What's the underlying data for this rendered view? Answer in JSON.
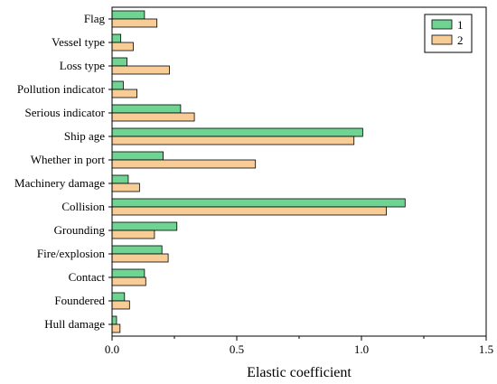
{
  "chart_data": {
    "type": "bar",
    "orientation": "horizontal",
    "categories": [
      "Flag",
      "Vessel type",
      "Loss type",
      "Pollution indicator",
      "Serious indicator",
      "Ship age",
      "Whether in port",
      "Machinery damage",
      "Collision",
      "Grounding",
      "Fire/explosion",
      "Contact",
      "Foundered",
      "Hull damage"
    ],
    "series": [
      {
        "name": "1",
        "color": "#6fd391",
        "values": [
          0.13,
          0.035,
          0.06,
          0.045,
          0.275,
          1.005,
          0.205,
          0.065,
          1.175,
          0.26,
          0.2,
          0.13,
          0.05,
          0.018
        ]
      },
      {
        "name": "2",
        "color": "#f8cc96",
        "values": [
          0.18,
          0.085,
          0.23,
          0.1,
          0.33,
          0.97,
          0.575,
          0.11,
          1.1,
          0.17,
          0.225,
          0.135,
          0.07,
          0.032
        ]
      }
    ],
    "xticks": [
      "0.0",
      "0.5",
      "1.0",
      "1.5"
    ],
    "xtick_values": [
      0,
      0.5,
      1.0,
      1.5
    ],
    "xlim": [
      0,
      1.5
    ],
    "xlabel": "Elastic coefficient",
    "ylabel": "",
    "title": "",
    "legend_position": "top-right",
    "grid": false
  }
}
